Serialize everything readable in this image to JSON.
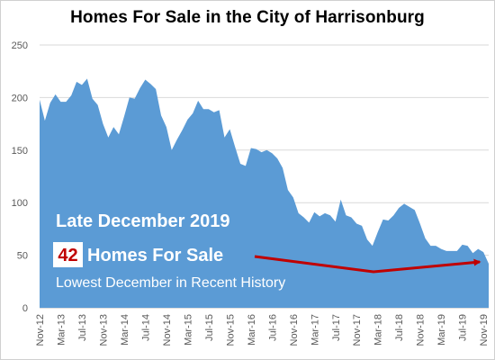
{
  "chart_data": {
    "type": "area",
    "title": "Homes For Sale in the City of Harrisonburg",
    "xlabel": "",
    "ylabel": "",
    "ylim": [
      0,
      250
    ],
    "yticks": [
      0,
      50,
      100,
      150,
      200,
      250
    ],
    "grid": true,
    "colors": {
      "area": "#5b9bd5",
      "grid": "#d9d9d9",
      "arrow": "#c00000",
      "number_text": "#c00000",
      "number_box": "#ffffff"
    },
    "x_tick_labels": [
      "Nov-12",
      "Mar-13",
      "Jul-13",
      "Nov-13",
      "Mar-14",
      "Jul-14",
      "Nov-14",
      "Mar-15",
      "Jul-15",
      "Nov-15",
      "Mar-16",
      "Jul-16",
      "Nov-16",
      "Mar-17",
      "Jul-17",
      "Nov-17",
      "Mar-18",
      "Jul-18",
      "Nov-18",
      "Mar-19",
      "Jul-19",
      "Nov-19"
    ],
    "x": [
      "Nov-12",
      "Dec-12",
      "Jan-13",
      "Feb-13",
      "Mar-13",
      "Apr-13",
      "May-13",
      "Jun-13",
      "Jul-13",
      "Aug-13",
      "Sep-13",
      "Oct-13",
      "Nov-13",
      "Dec-13",
      "Jan-14",
      "Feb-14",
      "Mar-14",
      "Apr-14",
      "May-14",
      "Jun-14",
      "Jul-14",
      "Aug-14",
      "Sep-14",
      "Oct-14",
      "Nov-14",
      "Dec-14",
      "Jan-15",
      "Feb-15",
      "Mar-15",
      "Apr-15",
      "May-15",
      "Jun-15",
      "Jul-15",
      "Aug-15",
      "Sep-15",
      "Oct-15",
      "Nov-15",
      "Dec-15",
      "Jan-16",
      "Feb-16",
      "Mar-16",
      "Apr-16",
      "May-16",
      "Jun-16",
      "Jul-16",
      "Aug-16",
      "Sep-16",
      "Oct-16",
      "Nov-16",
      "Dec-16",
      "Jan-17",
      "Feb-17",
      "Mar-17",
      "Apr-17",
      "May-17",
      "Jun-17",
      "Jul-17",
      "Aug-17",
      "Sep-17",
      "Oct-17",
      "Nov-17",
      "Dec-17",
      "Jan-18",
      "Feb-18",
      "Mar-18",
      "Apr-18",
      "May-18",
      "Jun-18",
      "Jul-18",
      "Aug-18",
      "Sep-18",
      "Oct-18",
      "Nov-18",
      "Dec-18",
      "Jan-19",
      "Feb-19",
      "Mar-19",
      "Apr-19",
      "May-19",
      "Jun-19",
      "Jul-19",
      "Aug-19",
      "Sep-19",
      "Oct-19",
      "Nov-19",
      "Dec-19"
    ],
    "series": [
      {
        "values": [
          198,
          178,
          195,
          203,
          196,
          196,
          202,
          215,
          212,
          218,
          199,
          193,
          175,
          162,
          172,
          165,
          182,
          200,
          199,
          209,
          217,
          213,
          208,
          183,
          172,
          150,
          160,
          169,
          179,
          185,
          197,
          189,
          189,
          186,
          188,
          162,
          170,
          153,
          137,
          135,
          152,
          151,
          148,
          150,
          147,
          142,
          133,
          112,
          105,
          90,
          86,
          81,
          91,
          87,
          90,
          88,
          82,
          103,
          88,
          86,
          80,
          78,
          65,
          59,
          72,
          84,
          83,
          88,
          95,
          99,
          96,
          93,
          80,
          66,
          59,
          59,
          56,
          54,
          54,
          54,
          60,
          59,
          52,
          56,
          53,
          42
        ]
      }
    ],
    "annotation": {
      "heading": "Late December 2019",
      "number": "42",
      "number_suffix": "Homes For Sale",
      "subtitle": "Lowest December in Recent History"
    }
  }
}
